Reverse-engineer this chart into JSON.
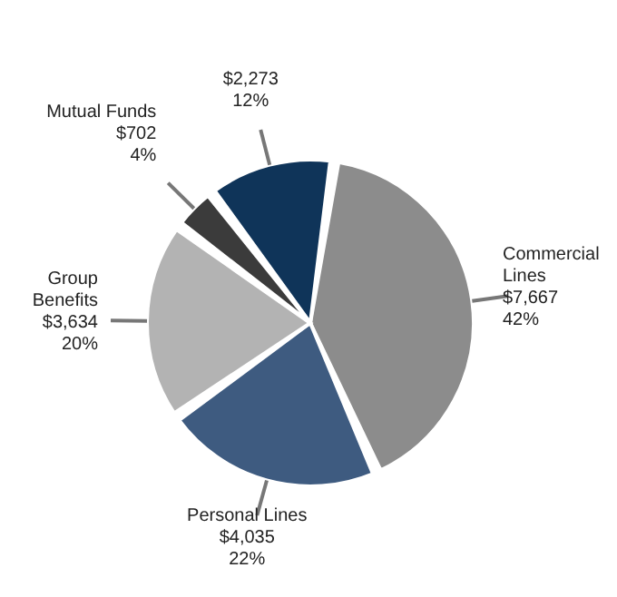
{
  "chart_data": {
    "type": "pie",
    "categories": [
      "Commercial Lines",
      "Personal Lines",
      "Group Benefits",
      "Mutual Funds",
      null
    ],
    "values": [
      7667,
      4035,
      3634,
      702,
      2273
    ],
    "value_labels": [
      "$7,667\n42%",
      "$4,035\n22%",
      "$3,634\n20%",
      "$702\n4%",
      "$2,273\n12%"
    ],
    "colors": [
      "#8c8c8c",
      "#3e5b80",
      "#b3b3b3",
      "#3b3b3b",
      "#0f3459"
    ]
  }
}
